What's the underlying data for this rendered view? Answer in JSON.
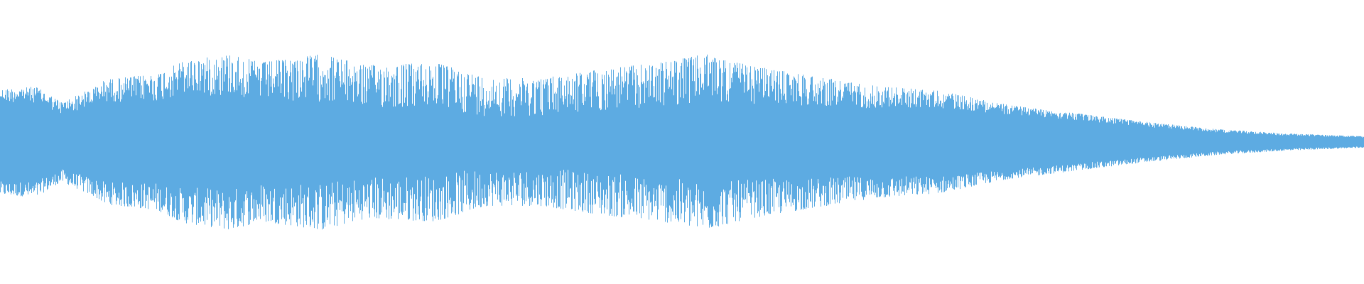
{
  "chart_data": {
    "type": "area",
    "title": "",
    "xlabel": "",
    "ylabel": "",
    "axes_visible": false,
    "grid": false,
    "legend": "none",
    "ylim": [
      -1,
      1
    ],
    "color": "#5DABE2",
    "background": "#FFFFFF",
    "envelope": {
      "t": [
        0.0,
        0.026,
        0.045,
        0.07,
        0.077,
        0.115,
        0.134,
        0.169,
        0.191,
        0.236,
        0.268,
        0.319,
        0.357,
        0.396,
        0.446,
        0.485,
        0.517,
        0.549,
        0.587,
        0.638,
        0.689,
        0.74,
        0.791,
        0.842,
        0.893,
        0.944,
        1.0
      ],
      "amplitude": [
        0.37,
        0.39,
        0.28,
        0.39,
        0.44,
        0.48,
        0.57,
        0.62,
        0.56,
        0.62,
        0.54,
        0.56,
        0.45,
        0.45,
        0.52,
        0.56,
        0.62,
        0.54,
        0.48,
        0.4,
        0.36,
        0.26,
        0.2,
        0.14,
        0.09,
        0.06,
        0.04
      ]
    }
  }
}
